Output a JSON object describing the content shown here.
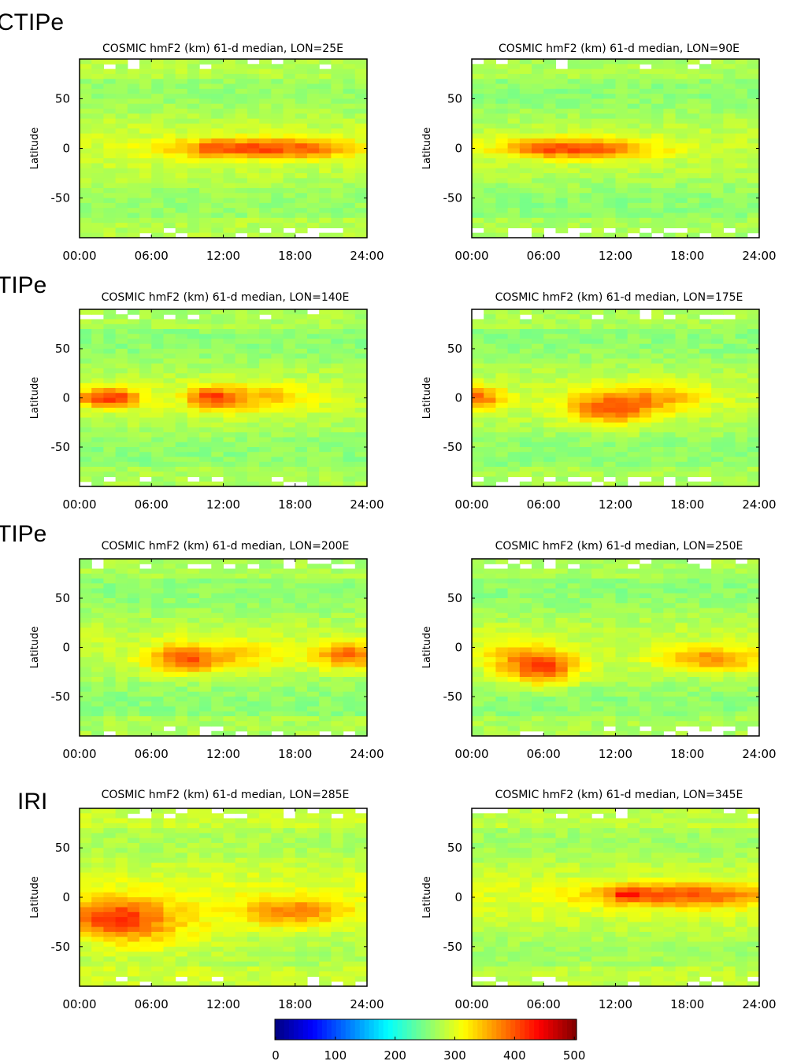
{
  "side_labels": [
    "CTIPe",
    "TIPe",
    "TIPe",
    "IRI"
  ],
  "chart_data": [
    {
      "type": "heatmap",
      "title": "COSMIC hmF2 (km) 61-d median, LON=25E",
      "ylabel": "Latitude",
      "xlabel": "",
      "xticks": [
        "00:00",
        "06:00",
        "12:00",
        "18:00",
        "24:00"
      ],
      "xlim": [
        0,
        24
      ],
      "yticks": [
        50,
        0,
        -50
      ],
      "ylim": [
        -90,
        90
      ],
      "pattern": "equatorial enhancement 08:00-21:00 with peak ~410 km near 19:00, values ~360-400 km along equator from 09:00 to 21:00, mid-latitude values ~280 km"
    },
    {
      "type": "heatmap",
      "title": "COSMIC hmF2 (km) 61-d median, LON=90E",
      "ylabel": "Latitude",
      "xlabel": "",
      "xticks": [
        "00:00",
        "06:00",
        "12:00",
        "18:00",
        "24:00"
      ],
      "xlim": [
        0,
        24
      ],
      "yticks": [
        50,
        0,
        -50
      ],
      "ylim": [
        -90,
        90
      ],
      "pattern": "equatorial enhancement 03:00-16:00 with peak ~400 km near 06:00, mid-latitude values ~270 km"
    },
    {
      "type": "heatmap",
      "title": "COSMIC hmF2 (km) 61-d median, LON=140E",
      "ylabel": "Latitude",
      "xlabel": "",
      "xticks": [
        "00:00",
        "06:00",
        "12:00",
        "18:00",
        "24:00"
      ],
      "xlim": [
        0,
        24
      ],
      "yticks": [
        50,
        0,
        -50
      ],
      "ylim": [
        -90,
        90
      ],
      "pattern": "equatorial enhancement 00:00-05:00 peak ~410 km, secondary ~380 km near 11:00, mid-latitude values ~270 km"
    },
    {
      "type": "heatmap",
      "title": "COSMIC hmF2 (km) 61-d median, LON=175E",
      "ylabel": "Latitude",
      "xlabel": "",
      "xticks": [
        "00:00",
        "06:00",
        "12:00",
        "18:00",
        "24:00"
      ],
      "xlim": [
        0,
        24
      ],
      "yticks": [
        50,
        0,
        -50
      ],
      "ylim": [
        -90,
        90
      ],
      "pattern": "equatorial enhancement near 00:00-02:00 ~380 km and 08:00-15:00 ~390 km dipping south to -20, mid-latitude values ~270 km"
    },
    {
      "type": "heatmap",
      "title": "COSMIC hmF2 (km) 61-d median, LON=200E",
      "ylabel": "Latitude",
      "xlabel": "",
      "xticks": [
        "00:00",
        "06:00",
        "12:00",
        "18:00",
        "24:00"
      ],
      "xlim": [
        0,
        24
      ],
      "yticks": [
        50,
        0,
        -50
      ],
      "ylim": [
        -90,
        90
      ],
      "pattern": "enhancement centered near -10 lat at 07:00-10:00 ~370 km and 21:00-24:00 ~380 km, mid-latitude values ~270 km"
    },
    {
      "type": "heatmap",
      "title": "COSMIC hmF2 (km) 61-d median, LON=250E",
      "ylabel": "Latitude",
      "xlabel": "",
      "xticks": [
        "00:00",
        "06:00",
        "12:00",
        "18:00",
        "24:00"
      ],
      "xlim": [
        0,
        24
      ],
      "yticks": [
        50,
        0,
        -50
      ],
      "ylim": [
        -90,
        90
      ],
      "pattern": "enhancement near -20 lat at 04:00-08:00 peak ~400 km and 17:00-23:00 ~360 km, mid-latitude values ~270 km"
    },
    {
      "type": "heatmap",
      "title": "COSMIC hmF2 (km) 61-d median, LON=285E",
      "ylabel": "Latitude",
      "xlabel": "",
      "xticks": [
        "00:00",
        "06:00",
        "12:00",
        "18:00",
        "24:00"
      ],
      "xlim": [
        0,
        24
      ],
      "yticks": [
        50,
        0,
        -50
      ],
      "ylim": [
        -90,
        90
      ],
      "pattern": "enhancement near -20 lat at 00:00-07:00 peak ~390 km and 15:00-21:00 ~360 km, elevated southern latitudes ~320 km"
    },
    {
      "type": "heatmap",
      "title": "COSMIC hmF2 (km) 61-d median, LON=345E",
      "ylabel": "Latitude",
      "xlabel": "",
      "xticks": [
        "00:00",
        "06:00",
        "12:00",
        "18:00",
        "24:00"
      ],
      "xlim": [
        0,
        24
      ],
      "yticks": [
        50,
        0,
        -50
      ],
      "ylim": [
        -90,
        90
      ],
      "pattern": "equatorial enhancement 11:00-24:00 with peak ~450 km near 13:00, mid-latitude values ~280 km"
    }
  ],
  "colorbar": {
    "ticks": [
      "0",
      "100",
      "200",
      "300",
      "400",
      "500"
    ],
    "range": [
      0,
      500
    ]
  }
}
